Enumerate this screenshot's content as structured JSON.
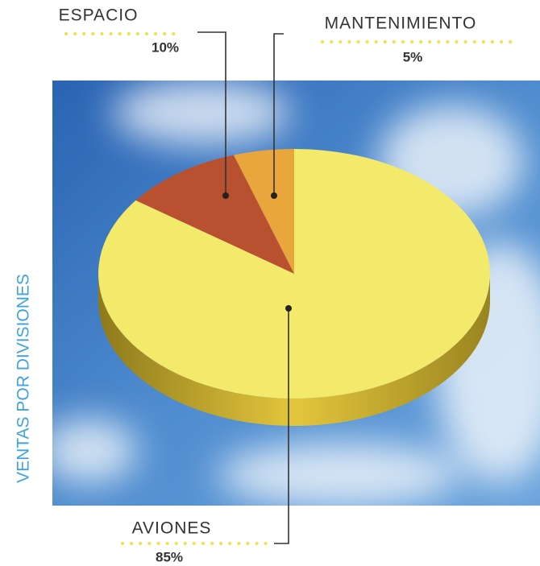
{
  "chart_data": {
    "type": "pie",
    "title": "VENTAS POR DIVISIONES",
    "categories": [
      "ESPACIO",
      "MANTENIMIENTO",
      "AVIONES"
    ],
    "values": [
      10,
      5,
      85
    ],
    "value_labels": [
      "10%",
      "5%",
      "85%"
    ],
    "colors": [
      "#b9502f",
      "#e9a63c",
      "#f3ea6c"
    ]
  }
}
